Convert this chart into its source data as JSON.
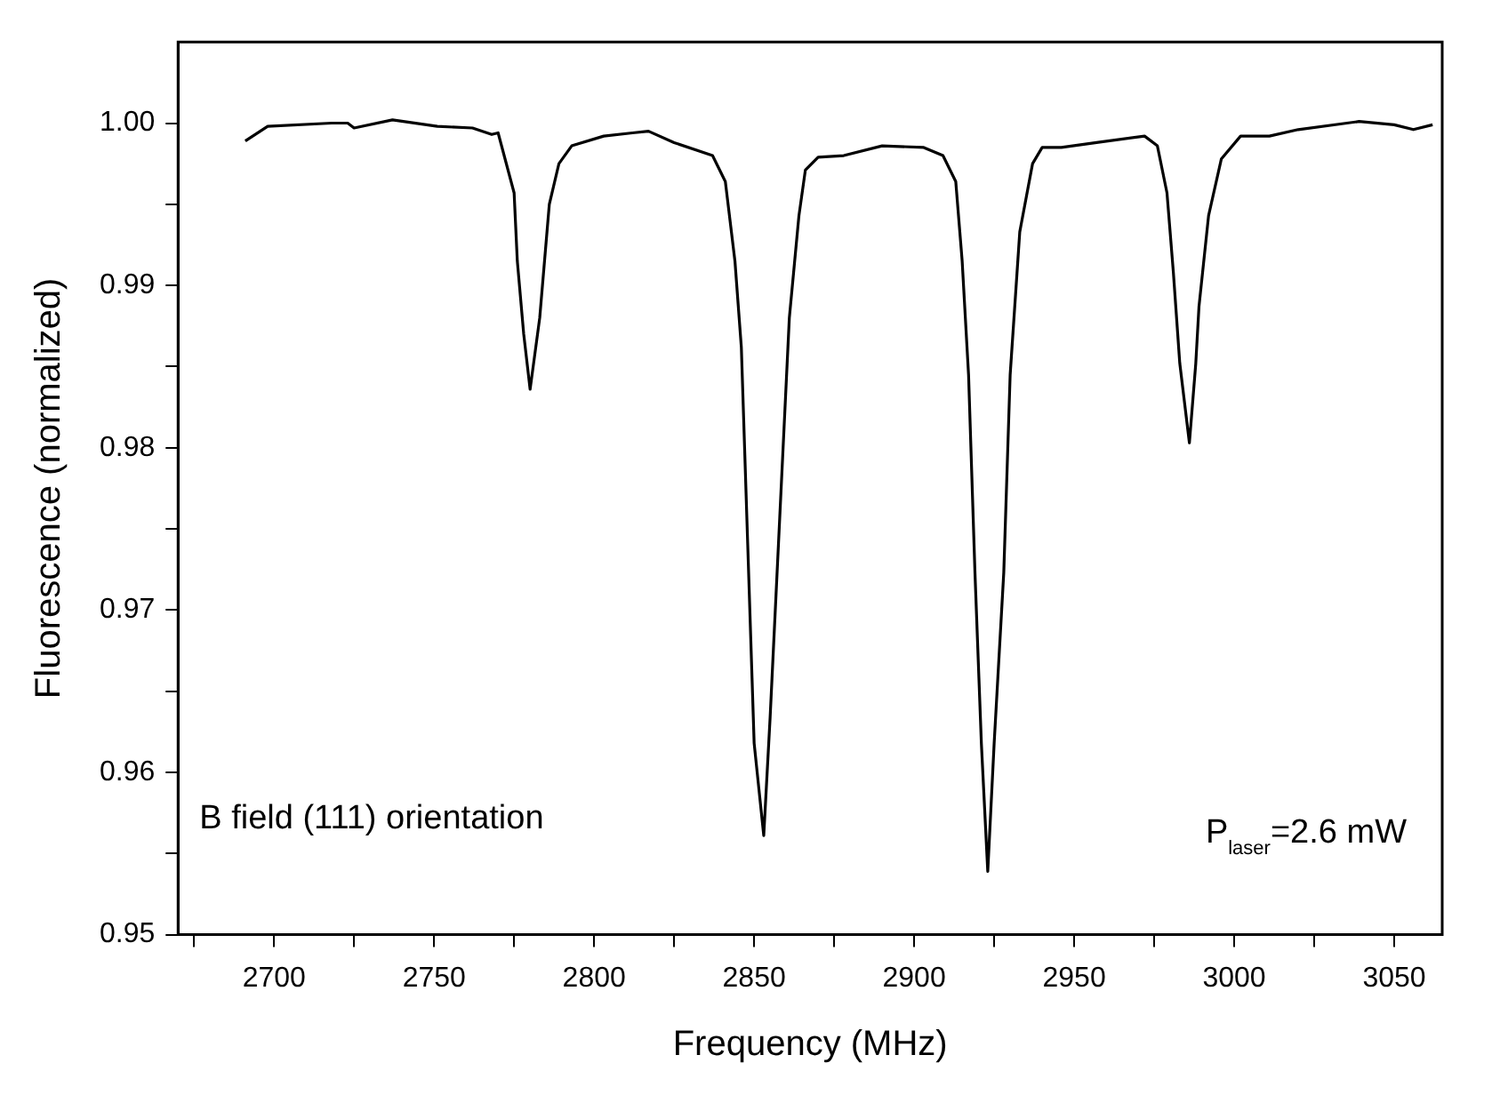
{
  "chart_data": {
    "type": "line",
    "xlabel": "Frequency (MHz)",
    "ylabel": "Fluorescence (normalized)",
    "annotations": [
      "B field (111) orientation",
      "P$_{laser}$=2.6 mW"
    ],
    "xlim": [
      2670,
      3065
    ],
    "xticks": [
      {
        "value": 2675,
        "label": null
      },
      2700,
      {
        "value": 2725,
        "label": null
      },
      2750,
      {
        "value": 2775,
        "label": null
      },
      2800,
      {
        "value": 2825,
        "label": null
      },
      2850,
      {
        "value": 2875,
        "label": null
      },
      2900,
      {
        "value": 2925,
        "label": null
      },
      2950,
      {
        "value": 2975,
        "label": null
      },
      3000,
      {
        "value": 3025,
        "label": null
      },
      3050
    ],
    "ylim": [
      0.95,
      1.005
    ],
    "yticks": [
      {
        "value": 0.95,
        "label": "0.95"
      },
      {
        "value": 0.955,
        "label": null
      },
      {
        "value": 0.96,
        "label": "0.96"
      },
      {
        "value": 0.965,
        "label": null
      },
      {
        "value": 0.97,
        "label": "0.97"
      },
      {
        "value": 0.975,
        "label": null
      },
      {
        "value": 0.98,
        "label": "0.98"
      },
      {
        "value": 0.985,
        "label": null
      },
      {
        "value": 0.99,
        "label": "0.99"
      },
      {
        "value": 0.995,
        "label": null
      },
      {
        "value": 1.0,
        "label": "1.00"
      }
    ],
    "grid": false,
    "legend": false,
    "marker": "none",
    "line_style": "solid",
    "series": [
      {
        "color": "#000000",
        "x": [
          2691,
          2698,
          2718,
          2723,
          2725,
          2737,
          2751,
          2762,
          2768,
          2770,
          2775,
          2776,
          2778,
          2780,
          2783,
          2786,
          2789,
          2793,
          2803,
          2812,
          2817,
          2825,
          2837,
          2841,
          2844,
          2846,
          2848,
          2850,
          2853,
          2855,
          2858,
          2861,
          2864,
          2866,
          2870,
          2878,
          2890,
          2903,
          2909,
          2913,
          2915,
          2917,
          2919,
          2921,
          2923,
          2925,
          2928,
          2930,
          2933,
          2937,
          2940,
          2946,
          2957,
          2972,
          2976,
          2979,
          2981,
          2983,
          2986,
          2988,
          2989,
          2992,
          2996,
          3002,
          3011,
          3020,
          3039,
          3050,
          3056,
          3062
        ],
        "values": [
          0.9989,
          0.9998,
          1.0,
          1.0,
          0.9997,
          1.0002,
          0.9998,
          0.9997,
          0.9993,
          0.9994,
          0.9957,
          0.9915,
          0.987,
          0.9836,
          0.988,
          0.995,
          0.9975,
          0.9986,
          0.9992,
          0.9994,
          0.9995,
          0.9988,
          0.998,
          0.9964,
          0.9915,
          0.9862,
          0.974,
          0.9618,
          0.9561,
          0.9634,
          0.9757,
          0.988,
          0.9943,
          0.9971,
          0.9979,
          0.998,
          0.9986,
          0.9985,
          0.998,
          0.9964,
          0.9915,
          0.9845,
          0.9723,
          0.9618,
          0.9539,
          0.9618,
          0.9723,
          0.9845,
          0.9933,
          0.9975,
          0.9985,
          0.9985,
          0.9988,
          0.9992,
          0.9986,
          0.9957,
          0.9908,
          0.9852,
          0.9803,
          0.9852,
          0.9887,
          0.9943,
          0.9978,
          0.9992,
          0.9992,
          0.9996,
          1.0001,
          0.9999,
          0.9996,
          0.9999
        ]
      }
    ]
  }
}
